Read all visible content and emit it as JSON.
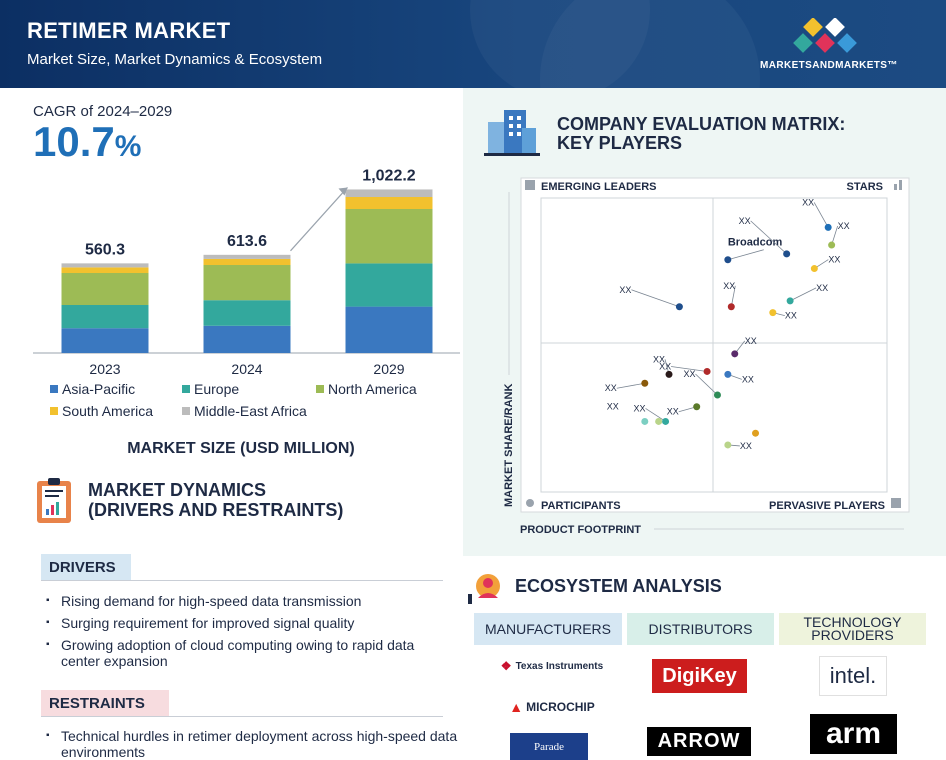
{
  "header": {
    "title": "RETIMER MARKET",
    "subtitle": "Market Size, Market Dynamics & Ecosystem",
    "brand": "MARKETSANDMARKETS™"
  },
  "cagr": {
    "label": "CAGR of 2024–2029",
    "value": "10.7",
    "unit": "%"
  },
  "chart_data": {
    "type": "bar",
    "stacked": true,
    "title": "MARKET SIZE (USD MILLION)",
    "categories": [
      "2023",
      "2024",
      "2029"
    ],
    "totals": [
      "560.3",
      "613.6",
      "1,022.2"
    ],
    "total_values": [
      560.3,
      613.6,
      1022.2
    ],
    "series": [
      {
        "name": "Asia-Pacific",
        "color": "#3a78c0",
        "values": [
          155,
          170,
          290
        ]
      },
      {
        "name": "Europe",
        "color": "#33a89d",
        "values": [
          145,
          160,
          270
        ]
      },
      {
        "name": "North America",
        "color": "#9dbb55",
        "values": [
          200,
          220,
          340
        ]
      },
      {
        "name": "South America",
        "color": "#f2c12e",
        "values": [
          35,
          38,
          75
        ]
      },
      {
        "name": "Middle-East Africa",
        "color": "#bcbcbc",
        "values": [
          25.3,
          25.6,
          47.2
        ]
      }
    ],
    "ylim": [
      0,
      1050
    ]
  },
  "market_dynamics": {
    "title_line1": "MARKET DYNAMICS",
    "title_line2": "(DRIVERS AND RESTRAINTS)",
    "drivers_label": "DRIVERS",
    "drivers": [
      "Rising demand for high-speed data transmission",
      "Surging requirement for improved signal quality",
      "Growing adoption of cloud computing owing to rapid data center expansion"
    ],
    "restraints_label": "RESTRAINTS",
    "restraints": [
      "Technical hurdles in retimer deployment across high-speed data environments"
    ]
  },
  "matrix": {
    "title_line1": "COMPANY EVALUATION MATRIX:",
    "title_line2": "KEY PLAYERS",
    "quadrants": {
      "top_left": "EMERGING LEADERS",
      "top_right": "STARS",
      "bottom_left": "PARTICIPANTS",
      "bottom_right": "PERVASIVE PLAYERS"
    },
    "y_axis_label": "MARKET SHARE/RANK",
    "x_axis_label": "PRODUCT FOOTPRINT",
    "named_player": "Broadcom",
    "placeholder_label": "XX",
    "points": [
      {
        "x": 0.54,
        "y": 0.79,
        "color": "#1f4e8c",
        "labeled": true
      },
      {
        "x": 0.4,
        "y": 0.63,
        "color": "#1f4e8c",
        "labeled": false
      },
      {
        "x": 0.51,
        "y": 0.33,
        "color": "#2e8b57",
        "labeled": false
      },
      {
        "x": 0.36,
        "y": 0.24,
        "color": "#33a89d",
        "labeled": false
      },
      {
        "x": 0.45,
        "y": 0.29,
        "color": "#5b7a2a",
        "labeled": false
      },
      {
        "x": 0.55,
        "y": 0.63,
        "color": "#b02a2a",
        "labeled": false
      },
      {
        "x": 0.71,
        "y": 0.81,
        "color": "#1f4e8c",
        "labeled": false
      },
      {
        "x": 0.83,
        "y": 0.9,
        "color": "#1f6fb7",
        "labeled": false
      },
      {
        "x": 0.84,
        "y": 0.84,
        "color": "#9dbb55",
        "labeled": false
      },
      {
        "x": 0.79,
        "y": 0.76,
        "color": "#f2c12e",
        "labeled": false
      },
      {
        "x": 0.72,
        "y": 0.65,
        "color": "#33a89d",
        "labeled": false
      },
      {
        "x": 0.67,
        "y": 0.61,
        "color": "#f2c12e",
        "labeled": false
      },
      {
        "x": 0.56,
        "y": 0.47,
        "color": "#5a2a6a",
        "labeled": false
      },
      {
        "x": 0.54,
        "y": 0.4,
        "color": "#3a78c0",
        "labeled": false
      },
      {
        "x": 0.48,
        "y": 0.41,
        "color": "#b02a2a",
        "labeled": false
      },
      {
        "x": 0.37,
        "y": 0.4,
        "color": "#2a1a1a",
        "labeled": false
      },
      {
        "x": 0.3,
        "y": 0.37,
        "color": "#8a5a0a",
        "labeled": false
      },
      {
        "x": 0.3,
        "y": 0.24,
        "color": "#7ccfc2",
        "labeled": false
      },
      {
        "x": 0.34,
        "y": 0.24,
        "color": "#b9d48a",
        "labeled": false
      },
      {
        "x": 0.62,
        "y": 0.2,
        "color": "#e0a020",
        "labeled": false
      },
      {
        "x": 0.54,
        "y": 0.16,
        "color": "#b9d48a",
        "labeled": false
      }
    ]
  },
  "ecosystem": {
    "title": "ECOSYSTEM ANALYSIS",
    "headers": [
      "MANUFACTURERS",
      "DISTRIBUTORS",
      "TECHNOLOGY PROVIDERS"
    ],
    "manufacturers": [
      "Texas Instruments",
      "MICROCHIP",
      "Parade"
    ],
    "distributors": [
      "DigiKey",
      "ARROW"
    ],
    "technology": [
      "intel.",
      "arm"
    ]
  },
  "colors": {
    "navy": "#0c2f63",
    "accent_blue": "#1f6fb7"
  }
}
